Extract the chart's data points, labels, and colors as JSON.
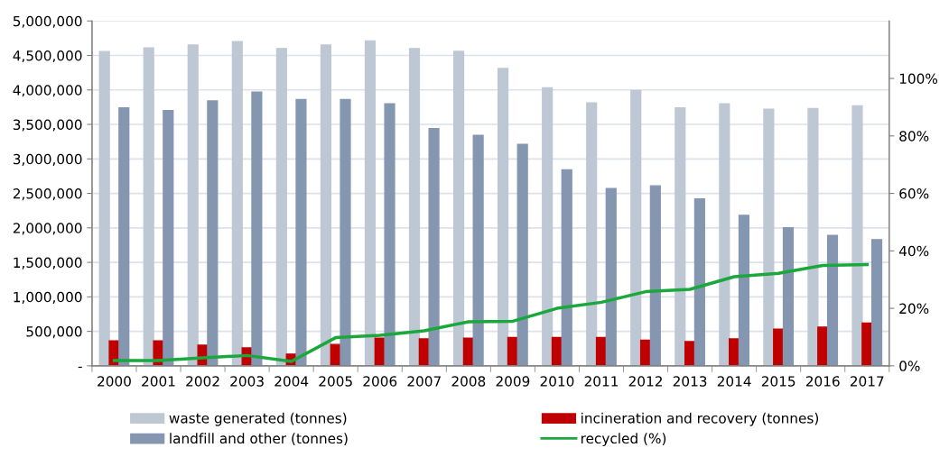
{
  "chart_data": {
    "type": "bar",
    "categories": [
      "2000",
      "2001",
      "2002",
      "2003",
      "2004",
      "2005",
      "2006",
      "2007",
      "2008",
      "2009",
      "2010",
      "2011",
      "2012",
      "2013",
      "2014",
      "2015",
      "2016",
      "2017"
    ],
    "series": [
      {
        "name": "waste generated (tonnes)",
        "color": "#bec7d4",
        "values": [
          4557000,
          4610000,
          4650000,
          4700000,
          4600000,
          4650000,
          4710000,
          4600000,
          4560000,
          4310000,
          4030000,
          3810000,
          3990000,
          3740000,
          3800000,
          3720000,
          3730000,
          3770000
        ]
      },
      {
        "name": "incineration and recovery (tonnes)",
        "color": "#c00000",
        "values": [
          360000,
          360000,
          300000,
          260000,
          170000,
          310000,
          400000,
          390000,
          400000,
          410000,
          410000,
          410000,
          370000,
          350000,
          390000,
          530000,
          560000,
          620000
        ]
      },
      {
        "name": "landfill and other (tonnes)",
        "color": "#8496b0",
        "values": [
          3740000,
          3700000,
          3840000,
          3970000,
          3860000,
          3860000,
          3800000,
          3440000,
          3340000,
          3210000,
          2840000,
          2570000,
          2610000,
          2420000,
          2180000,
          2000000,
          1890000,
          1830000
        ]
      },
      {
        "name": "recycled (%)",
        "type": "line",
        "axis": "y2",
        "color": "#1aa83c",
        "values": [
          1.8,
          1.8,
          2.8,
          3.6,
          1.5,
          9.8,
          10.6,
          12.2,
          15.3,
          15.5,
          20.0,
          22.1,
          25.8,
          26.6,
          31.0,
          32.2,
          34.9,
          35.2
        ]
      }
    ],
    "ylim": [
      0,
      5000000
    ],
    "yticks": [
      {
        "value": 0,
        "label": "-"
      },
      {
        "value": 500000,
        "label": "500,000"
      },
      {
        "value": 1000000,
        "label": "1,000,000"
      },
      {
        "value": 1500000,
        "label": "1,500,000"
      },
      {
        "value": 2000000,
        "label": "2,000,000"
      },
      {
        "value": 2500000,
        "label": "2,500,000"
      },
      {
        "value": 3000000,
        "label": "3,000,000"
      },
      {
        "value": 3500000,
        "label": "3,500,000"
      },
      {
        "value": 4000000,
        "label": "4,000,000"
      },
      {
        "value": 4500000,
        "label": "4,500,000"
      },
      {
        "value": 5000000,
        "label": "5,000,000"
      }
    ],
    "y2lim": [
      0,
      120
    ],
    "y2ticks": [
      {
        "value": 0,
        "label": "0%"
      },
      {
        "value": 20,
        "label": "20%"
      },
      {
        "value": 40,
        "label": "40%"
      },
      {
        "value": 60,
        "label": "60%"
      },
      {
        "value": 80,
        "label": "80%"
      },
      {
        "value": 100,
        "label": "100%"
      }
    ],
    "grid": "y",
    "legend": "bottom",
    "marker": "none",
    "line_style": "solid"
  }
}
